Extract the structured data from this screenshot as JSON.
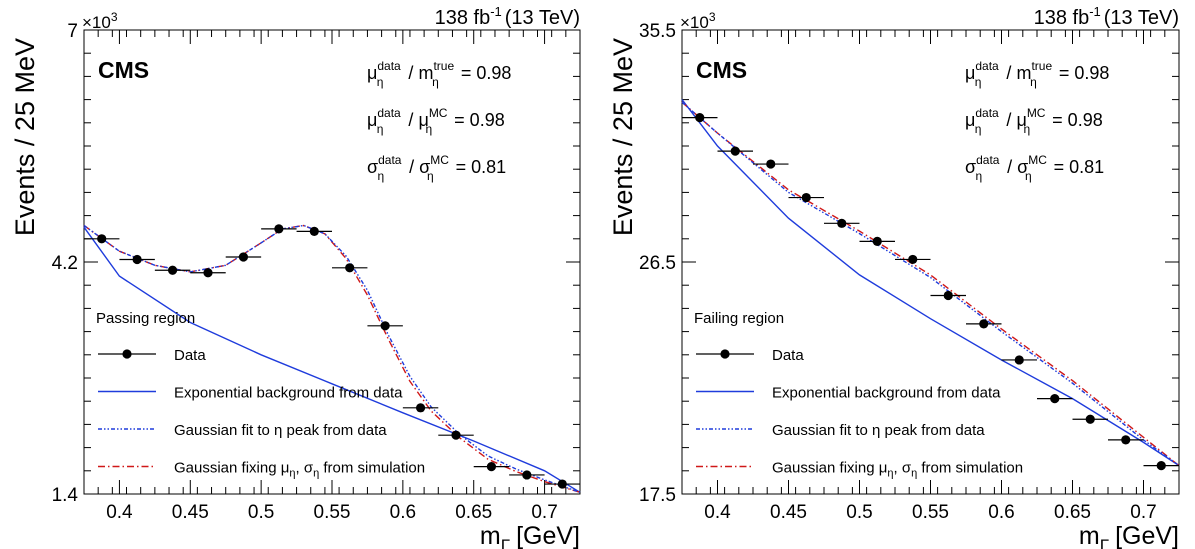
{
  "chart_data": [
    {
      "type": "scatter",
      "luminosity_label": "138 fb",
      "luminosity_sup": "-1",
      "energy_label": "(13 TeV)",
      "experiment": "CMS",
      "ylabel": "Events / 25 MeV",
      "xlabel_main": "m",
      "xlabel_sub": "Γ",
      "xlabel_unit": "[GeV]",
      "y_multiplier_base": "×10",
      "y_multiplier_exp": "3",
      "y_tick_labels": [
        "7",
        "4.2",
        "1.4"
      ],
      "y_tick_values": [
        7.0,
        4.2,
        1.4
      ],
      "x_tick_labels": [
        "0.4",
        "0.45",
        "0.5",
        "0.55",
        "0.6",
        "0.65",
        "0.7"
      ],
      "x_tick_values": [
        0.4,
        0.45,
        0.5,
        0.55,
        0.6,
        0.65,
        0.7
      ],
      "xlim": [
        0.375,
        0.725
      ],
      "ylim": [
        1.4,
        7.0
      ],
      "ratios": [
        {
          "sym": "μ",
          "sub": "η",
          "sup": "data",
          "sym2": "m",
          "sub2": "η",
          "sup2": "true",
          "value": "= 0.98"
        },
        {
          "sym": "μ",
          "sub": "η",
          "sup": "data",
          "sym2": "μ",
          "sub2": "η",
          "sup2": "MC",
          "value": "= 0.98"
        },
        {
          "sym": "σ",
          "sub": "η",
          "sup": "data",
          "sym2": "σ",
          "sub2": "η",
          "sup2": "MC",
          "value": "= 0.81"
        }
      ],
      "region_label": "Passing region",
      "legend": [
        {
          "label": "Data",
          "style": "data"
        },
        {
          "label": "Exponential background from data",
          "style": "solid-blue"
        },
        {
          "label": "Gaussian fit to η peak from data",
          "style": "dashdot-blue"
        },
        {
          "label": "Gaussian fixing μ",
          "sub": "η",
          "label_end": ", σ",
          "sub2": "η",
          "label_tail": " from simulation",
          "style": "dashdot-red"
        }
      ],
      "points": {
        "x": [
          0.3875,
          0.4125,
          0.4375,
          0.4625,
          0.4875,
          0.5125,
          0.5375,
          0.5625,
          0.5875,
          0.6125,
          0.6375,
          0.6625,
          0.6875,
          0.7125
        ],
        "y": [
          4.48,
          4.23,
          4.1,
          4.07,
          4.26,
          4.6,
          4.57,
          4.13,
          3.43,
          2.44,
          2.11,
          1.73,
          1.63,
          1.52
        ],
        "xerr": 0.0125
      },
      "background": {
        "x": [
          0.375,
          0.4,
          0.45,
          0.5,
          0.55,
          0.6,
          0.65,
          0.7,
          0.725
        ],
        "y": [
          4.62,
          4.03,
          3.47,
          3.08,
          2.73,
          2.38,
          2.04,
          1.68,
          1.42
        ]
      },
      "fit_data": {
        "x": [
          0.375,
          0.4,
          0.425,
          0.45,
          0.475,
          0.5,
          0.515,
          0.53,
          0.545,
          0.56,
          0.575,
          0.59,
          0.605,
          0.62,
          0.64,
          0.66,
          0.68,
          0.7,
          0.725
        ],
        "y": [
          4.64,
          4.33,
          4.16,
          4.08,
          4.16,
          4.43,
          4.6,
          4.64,
          4.54,
          4.27,
          3.86,
          3.31,
          2.82,
          2.45,
          2.12,
          1.86,
          1.7,
          1.57,
          1.42
        ]
      },
      "fit_sim": {
        "x": [
          0.375,
          0.4,
          0.425,
          0.45,
          0.475,
          0.5,
          0.515,
          0.53,
          0.545,
          0.56,
          0.575,
          0.59,
          0.605,
          0.62,
          0.64,
          0.66,
          0.68,
          0.7,
          0.725
        ],
        "y": [
          4.64,
          4.33,
          4.16,
          4.08,
          4.16,
          4.43,
          4.6,
          4.64,
          4.54,
          4.24,
          3.8,
          3.26,
          2.76,
          2.4,
          2.08,
          1.82,
          1.67,
          1.55,
          1.42
        ]
      }
    },
    {
      "type": "scatter",
      "luminosity_label": "138 fb",
      "luminosity_sup": "-1",
      "energy_label": "(13 TeV)",
      "experiment": "CMS",
      "ylabel": "Events / 25 MeV",
      "xlabel_main": "m",
      "xlabel_sub": "Γ",
      "xlabel_unit": "[GeV]",
      "y_multiplier_base": "×10",
      "y_multiplier_exp": "3",
      "y_tick_labels": [
        "35.5",
        "26.5",
        "17.5"
      ],
      "y_tick_values": [
        35.5,
        26.5,
        17.5
      ],
      "x_tick_labels": [
        "0.4",
        "0.45",
        "0.5",
        "0.55",
        "0.6",
        "0.65",
        "0.7"
      ],
      "x_tick_values": [
        0.4,
        0.45,
        0.5,
        0.55,
        0.6,
        0.65,
        0.7
      ],
      "xlim": [
        0.375,
        0.725
      ],
      "ylim": [
        17.5,
        35.5
      ],
      "ratios": [
        {
          "sym": "μ",
          "sub": "η",
          "sup": "data",
          "sym2": "m",
          "sub2": "η",
          "sup2": "true",
          "value": "= 0.98"
        },
        {
          "sym": "μ",
          "sub": "η",
          "sup": "data",
          "sym2": "μ",
          "sub2": "η",
          "sup2": "MC",
          "value": "= 0.98"
        },
        {
          "sym": "σ",
          "sub": "η",
          "sup": "data",
          "sym2": "σ",
          "sub2": "η",
          "sup2": "MC",
          "value": "= 0.81"
        }
      ],
      "region_label": "Failing region",
      "legend": [
        {
          "label": "Data",
          "style": "data"
        },
        {
          "label": "Exponential background from data",
          "style": "solid-blue"
        },
        {
          "label": "Gaussian fit to η peak from data",
          "style": "dashdot-blue"
        },
        {
          "label": "Gaussian fixing μ",
          "sub": "η",
          "label_end": ", σ",
          "sub2": "η",
          "label_tail": " from simulation",
          "style": "dashdot-red"
        }
      ],
      "points": {
        "x": [
          0.3875,
          0.4125,
          0.4375,
          0.4625,
          0.4875,
          0.5125,
          0.5375,
          0.5625,
          0.5875,
          0.6125,
          0.6375,
          0.6625,
          0.6875,
          0.7125
        ],
        "y": [
          32.1,
          30.8,
          30.3,
          29.0,
          28.0,
          27.3,
          26.6,
          25.2,
          24.1,
          22.7,
          21.2,
          20.4,
          19.6,
          18.6
        ],
        "xerr": 0.0125
      },
      "background": {
        "x": [
          0.375,
          0.4,
          0.45,
          0.5,
          0.55,
          0.6,
          0.65,
          0.7,
          0.725
        ],
        "y": [
          32.8,
          31.0,
          28.2,
          26.0,
          24.3,
          22.7,
          21.2,
          19.5,
          18.6
        ]
      },
      "fit_data": {
        "x": [
          0.375,
          0.4,
          0.45,
          0.5,
          0.55,
          0.6,
          0.65,
          0.7,
          0.725
        ],
        "y": [
          32.7,
          31.5,
          29.2,
          27.6,
          25.9,
          23.8,
          21.8,
          19.6,
          18.6
        ]
      },
      "fit_sim": {
        "x": [
          0.375,
          0.4,
          0.45,
          0.5,
          0.55,
          0.6,
          0.65,
          0.7,
          0.725
        ],
        "y": [
          32.7,
          31.5,
          29.3,
          27.7,
          26.0,
          23.9,
          21.9,
          19.7,
          18.6
        ]
      }
    }
  ]
}
